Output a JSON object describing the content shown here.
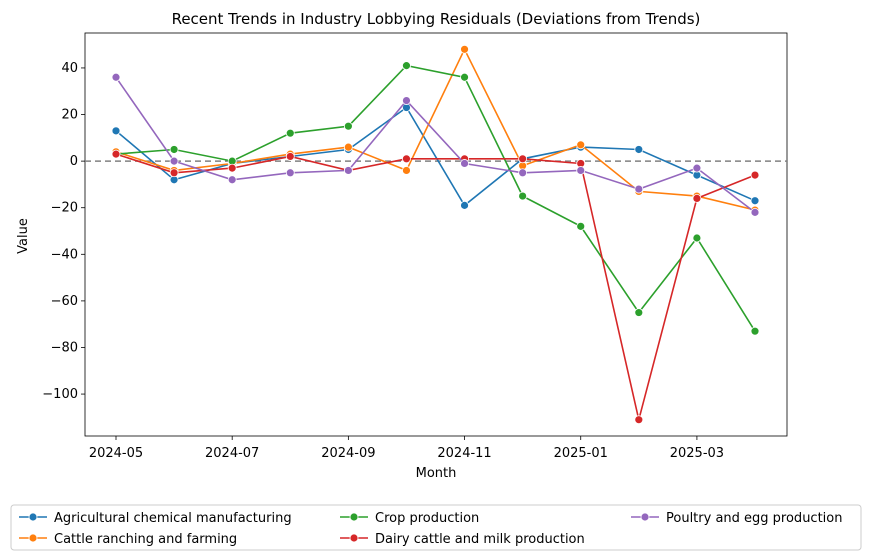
{
  "chart_data": {
    "type": "line",
    "title": "Recent Trends in Industry Lobbying Residuals (Deviations from Trends)",
    "xlabel": "Month",
    "ylabel": "Value",
    "x": [
      "2024-05",
      "2024-06",
      "2024-07",
      "2024-08",
      "2024-09",
      "2024-10",
      "2024-11",
      "2024-12",
      "2025-01",
      "2025-02",
      "2025-03",
      "2025-04"
    ],
    "x_tick_labels": [
      "2024-05",
      "2024-07",
      "2024-09",
      "2024-11",
      "2025-01",
      "2025-03"
    ],
    "y_ticks": [
      40,
      20,
      0,
      -20,
      -40,
      -60,
      -80,
      -100
    ],
    "y_tick_labels": [
      "40",
      "20",
      "0",
      "−20",
      "−40",
      "−60",
      "−80",
      "−100"
    ],
    "ylim": [
      -118,
      55
    ],
    "reference_line": 0,
    "grid": false,
    "legend_position": "bottom",
    "series": [
      {
        "name": "Agricultural chemical manufacturing",
        "color": "#1f77b4",
        "values": [
          13,
          -8,
          -1,
          2,
          5,
          23,
          -19,
          1,
          6,
          5,
          -6,
          -17
        ]
      },
      {
        "name": "Cattle ranching and farming",
        "color": "#ff7f0e",
        "values": [
          4,
          -4,
          -1,
          3,
          6,
          -4,
          48,
          -2,
          7,
          -13,
          -15,
          -21
        ]
      },
      {
        "name": "Crop production",
        "color": "#2ca02c",
        "values": [
          3,
          5,
          0,
          12,
          15,
          41,
          36,
          -15,
          -28,
          -65,
          -33,
          -73
        ]
      },
      {
        "name": "Dairy cattle and milk production",
        "color": "#d62728",
        "values": [
          3,
          -5,
          -3,
          2,
          -4,
          1,
          1,
          1,
          -1,
          -111,
          -16,
          -6
        ]
      },
      {
        "name": "Poultry and egg production",
        "color": "#9467bd",
        "values": [
          36,
          0,
          -8,
          -5,
          -4,
          26,
          -1,
          -5,
          -4,
          -12,
          -3,
          -22
        ]
      }
    ]
  }
}
